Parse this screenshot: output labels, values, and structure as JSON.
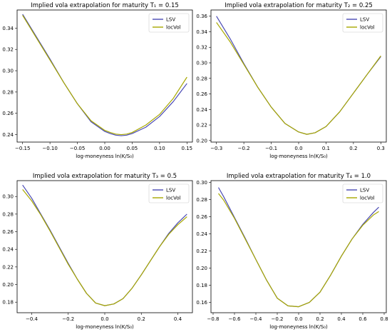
{
  "chart_data": [
    {
      "type": "line",
      "title": "Implied vola extrapolation for maturity T₁ = 0.15",
      "xlabel": "log-moneyness ln(K/S₀)",
      "ylabel": "",
      "xlim": [
        -0.16,
        0.16
      ],
      "ylim": [
        0.233,
        0.357
      ],
      "xticks": [
        -0.15,
        -0.1,
        -0.05,
        0.0,
        0.05,
        0.1,
        0.15
      ],
      "xtick_labels": [
        "−0.15",
        "−0.10",
        "−0.05",
        "0.00",
        "0.05",
        "0.10",
        "0.15"
      ],
      "yticks": [
        0.24,
        0.26,
        0.28,
        0.3,
        0.32,
        0.34
      ],
      "ytick_labels": [
        "0.24",
        "0.26",
        "0.28",
        "0.30",
        "0.32",
        "0.34"
      ],
      "legend_position": "top-right",
      "series": [
        {
          "name": "LSV",
          "color": "#4a4ab4",
          "x": [
            -0.15,
            -0.125,
            -0.1,
            -0.075,
            -0.05,
            -0.025,
            0.0,
            0.01,
            0.02,
            0.03,
            0.04,
            0.05,
            0.075,
            0.1,
            0.125,
            0.15
          ],
          "y": [
            0.353,
            0.332,
            0.311,
            0.289,
            0.269,
            0.252,
            0.243,
            0.241,
            0.2395,
            0.239,
            0.2395,
            0.241,
            0.247,
            0.257,
            0.271,
            0.288
          ]
        },
        {
          "name": "locVol",
          "color": "#a8a800",
          "x": [
            -0.15,
            -0.125,
            -0.1,
            -0.075,
            -0.05,
            -0.025,
            0.0,
            0.01,
            0.02,
            0.03,
            0.04,
            0.05,
            0.075,
            0.1,
            0.125,
            0.15
          ],
          "y": [
            0.352,
            0.331,
            0.31,
            0.289,
            0.269,
            0.253,
            0.244,
            0.242,
            0.2405,
            0.24,
            0.2405,
            0.242,
            0.249,
            0.259,
            0.274,
            0.294
          ]
        }
      ]
    },
    {
      "type": "line",
      "title": "Implied vola extrapolation for maturity T₂ = 0.25",
      "xlabel": "log-moneyness ln(K/S₀)",
      "ylabel": "",
      "xlim": [
        -0.32,
        0.32
      ],
      "ylim": [
        0.198,
        0.368
      ],
      "xticks": [
        -0.3,
        -0.2,
        -0.1,
        0.0,
        0.1,
        0.2,
        0.3
      ],
      "xtick_labels": [
        "−0.3",
        "−0.2",
        "−0.1",
        "0.0",
        "0.1",
        "0.2",
        "0.3"
      ],
      "yticks": [
        0.2,
        0.22,
        0.24,
        0.26,
        0.28,
        0.3,
        0.32,
        0.34,
        0.36
      ],
      "ytick_labels": [
        "0.20",
        "0.22",
        "0.24",
        "0.26",
        "0.28",
        "0.30",
        "0.32",
        "0.34",
        "0.36"
      ],
      "legend_position": "top-right",
      "series": [
        {
          "name": "LSV",
          "color": "#4a4ab4",
          "x": [
            -0.3,
            -0.25,
            -0.2,
            -0.15,
            -0.1,
            -0.05,
            0.0,
            0.03,
            0.06,
            0.1,
            0.15,
            0.2,
            0.25,
            0.3
          ],
          "y": [
            0.36,
            0.331,
            0.299,
            0.269,
            0.243,
            0.222,
            0.211,
            0.208,
            0.21,
            0.218,
            0.237,
            0.261,
            0.285,
            0.308
          ]
        },
        {
          "name": "locVol",
          "color": "#a8a800",
          "x": [
            -0.3,
            -0.25,
            -0.2,
            -0.15,
            -0.1,
            -0.05,
            0.0,
            0.03,
            0.06,
            0.1,
            0.15,
            0.2,
            0.25,
            0.3
          ],
          "y": [
            0.352,
            0.327,
            0.298,
            0.269,
            0.243,
            0.222,
            0.211,
            0.208,
            0.21,
            0.218,
            0.237,
            0.261,
            0.285,
            0.309
          ]
        }
      ]
    },
    {
      "type": "line",
      "title": "Implied vola extrapolation for maturity T₃ = 0.5",
      "xlabel": "log-moneyness ln(K/S₀)",
      "ylabel": "",
      "xlim": [
        -0.48,
        0.48
      ],
      "ylim": [
        0.168,
        0.318
      ],
      "xticks": [
        -0.4,
        -0.2,
        0.0,
        0.2,
        0.4
      ],
      "xtick_labels": [
        "−0.4",
        "−0.2",
        "0.0",
        "0.2",
        "0.4"
      ],
      "yticks": [
        0.18,
        0.2,
        0.22,
        0.24,
        0.26,
        0.28,
        0.3
      ],
      "ytick_labels": [
        "0.18",
        "0.20",
        "0.22",
        "0.24",
        "0.26",
        "0.28",
        "0.30"
      ],
      "legend_position": "top-right",
      "series": [
        {
          "name": "LSV",
          "color": "#4a4ab4",
          "x": [
            -0.45,
            -0.4,
            -0.35,
            -0.3,
            -0.25,
            -0.2,
            -0.15,
            -0.1,
            -0.05,
            0.0,
            0.05,
            0.1,
            0.15,
            0.2,
            0.25,
            0.3,
            0.35,
            0.4,
            0.45
          ],
          "y": [
            0.313,
            0.298,
            0.28,
            0.262,
            0.243,
            0.224,
            0.206,
            0.19,
            0.179,
            0.176,
            0.178,
            0.184,
            0.196,
            0.211,
            0.227,
            0.243,
            0.258,
            0.27,
            0.28
          ]
        },
        {
          "name": "locVol",
          "color": "#a8a800",
          "x": [
            -0.45,
            -0.4,
            -0.35,
            -0.3,
            -0.25,
            -0.2,
            -0.15,
            -0.1,
            -0.05,
            0.0,
            0.05,
            0.1,
            0.15,
            0.2,
            0.25,
            0.3,
            0.35,
            0.4,
            0.45
          ],
          "y": [
            0.308,
            0.295,
            0.279,
            0.261,
            0.242,
            0.223,
            0.206,
            0.19,
            0.179,
            0.176,
            0.178,
            0.184,
            0.196,
            0.211,
            0.227,
            0.243,
            0.257,
            0.268,
            0.277
          ]
        }
      ]
    },
    {
      "type": "line",
      "title": "Implied vola extrapolation for maturity T₄ = 1.0",
      "xlabel": "log-moneyness ln(K/S₀)",
      "ylabel": "",
      "xlim": [
        -0.82,
        0.82
      ],
      "ylim": [
        0.148,
        0.302
      ],
      "xticks": [
        -0.8,
        -0.6,
        -0.4,
        -0.2,
        0.0,
        0.2,
        0.4,
        0.6,
        0.8
      ],
      "xtick_labels": [
        "−0.8",
        "−0.6",
        "−0.4",
        "−0.2",
        "0.0",
        "0.2",
        "0.4",
        "0.6",
        "0.8"
      ],
      "yticks": [
        0.16,
        0.18,
        0.2,
        0.22,
        0.24,
        0.26,
        0.28,
        0.3
      ],
      "ytick_labels": [
        "0.16",
        "0.18",
        "0.20",
        "0.22",
        "0.24",
        "0.26",
        "0.28",
        "0.30"
      ],
      "legend_position": "top-right",
      "series": [
        {
          "name": "LSV",
          "color": "#4a4ab4",
          "x": [
            -0.75,
            -0.7,
            -0.6,
            -0.5,
            -0.4,
            -0.3,
            -0.2,
            -0.1,
            0.0,
            0.1,
            0.2,
            0.3,
            0.4,
            0.5,
            0.6,
            0.7,
            0.75
          ],
          "y": [
            0.294,
            0.283,
            0.259,
            0.235,
            0.21,
            0.186,
            0.165,
            0.156,
            0.155,
            0.16,
            0.172,
            0.192,
            0.214,
            0.234,
            0.251,
            0.265,
            0.271
          ]
        },
        {
          "name": "locVol",
          "color": "#a8a800",
          "x": [
            -0.75,
            -0.7,
            -0.6,
            -0.5,
            -0.4,
            -0.3,
            -0.2,
            -0.1,
            0.0,
            0.1,
            0.2,
            0.3,
            0.4,
            0.5,
            0.6,
            0.7,
            0.75
          ],
          "y": [
            0.287,
            0.279,
            0.258,
            0.234,
            0.21,
            0.186,
            0.165,
            0.156,
            0.155,
            0.16,
            0.172,
            0.192,
            0.214,
            0.234,
            0.25,
            0.262,
            0.266
          ]
        }
      ]
    }
  ]
}
